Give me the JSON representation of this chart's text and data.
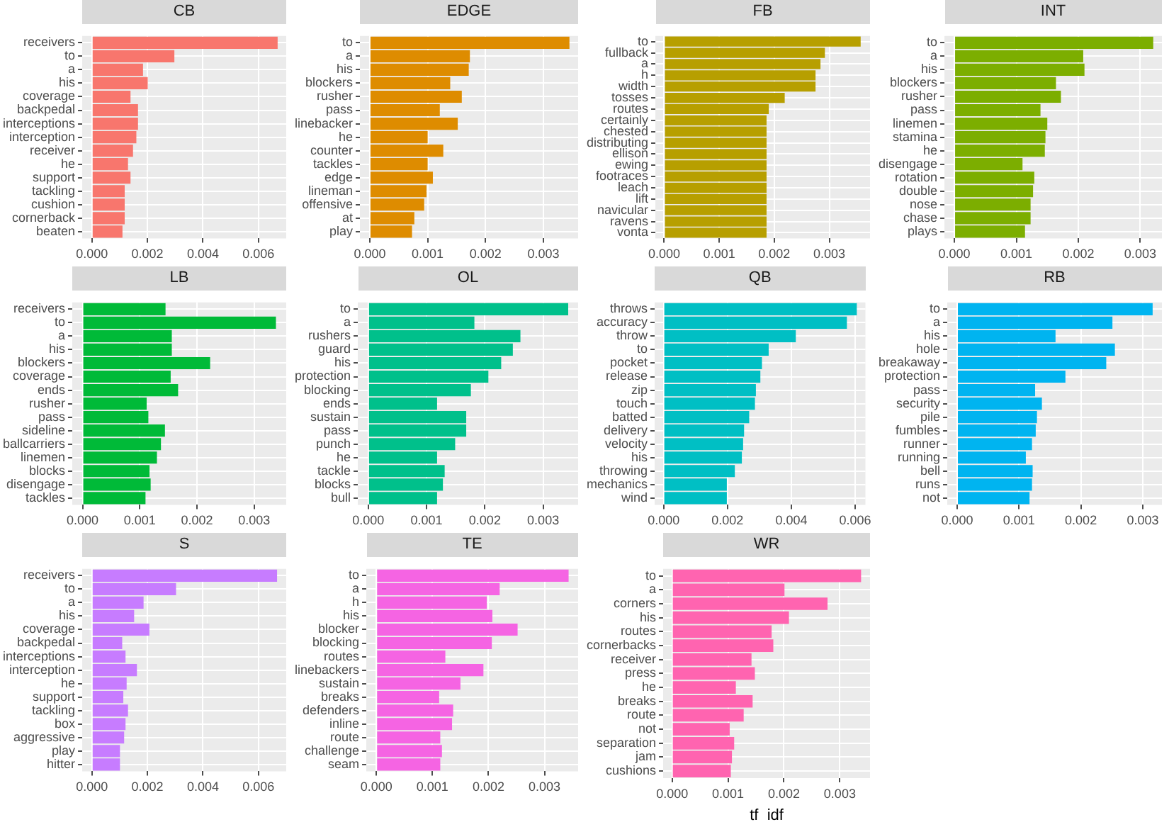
{
  "chart_data": [
    {
      "type": "bar",
      "orientation": "horizontal",
      "title": "CB",
      "grid": true,
      "categories": [
        "receivers",
        "to",
        "a",
        "his",
        "coverage",
        "backpedal",
        "interceptions",
        "interception",
        "receiver",
        "he",
        "support",
        "tackling",
        "cushion",
        "cornerback",
        "beaten"
      ],
      "series": [
        {
          "color": "#f8766d",
          "values": [
            0.00669,
            0.00297,
            0.00184,
            0.00201,
            0.00139,
            0.00166,
            0.00166,
            0.0016,
            0.00148,
            0.0013,
            0.00139,
            0.00118,
            0.00118,
            0.00118,
            0.0011
          ]
        }
      ],
      "xlim": [
        -0.00035,
        0.007
      ],
      "xticks": [
        {
          "value": 0,
          "label": "0.000"
        },
        {
          "value": 0.002,
          "label": "0.002"
        },
        {
          "value": 0.004,
          "label": "0.004"
        },
        {
          "value": 0.006,
          "label": "0.006"
        }
      ]
    },
    {
      "type": "bar",
      "orientation": "horizontal",
      "title": "EDGE",
      "grid": true,
      "categories": [
        "to",
        "a",
        "his",
        "blockers",
        "rusher",
        "pass",
        "linebacker",
        "he",
        "counter",
        "tackles",
        "edge",
        "lineman",
        "offensive",
        "at",
        "play"
      ],
      "series": [
        {
          "color": "#de8c00",
          "values": [
            0.00345,
            0.00173,
            0.00171,
            0.00139,
            0.00159,
            0.00121,
            0.00152,
            0.001,
            0.00127,
            0.001,
            0.00109,
            0.00098,
            0.00094,
            0.00077,
            0.00073
          ]
        }
      ],
      "xlim": [
        -0.00017,
        0.0036
      ],
      "xticks": [
        {
          "value": 0,
          "label": "0.000"
        },
        {
          "value": 0.001,
          "label": "0.001"
        },
        {
          "value": 0.002,
          "label": "0.002"
        },
        {
          "value": 0.003,
          "label": "0.003"
        }
      ]
    },
    {
      "type": "bar",
      "orientation": "horizontal",
      "title": "FB",
      "grid": true,
      "categories": [
        "to",
        "fullback",
        "a",
        "h",
        "width",
        "tosses",
        "routes",
        "certainly",
        "chested",
        "distributing",
        "ellison",
        "ewing",
        "footraces",
        "leach",
        "lift",
        "navicular",
        "ravens",
        "vonta"
      ],
      "series": [
        {
          "color": "#b79f00",
          "values": [
            0.00357,
            0.00292,
            0.00284,
            0.00275,
            0.00275,
            0.00219,
            0.0019,
            0.00186,
            0.00186,
            0.00186,
            0.00186,
            0.00186,
            0.00186,
            0.00186,
            0.00186,
            0.00186,
            0.00186,
            0.00186
          ]
        }
      ],
      "xlim": [
        -0.00016,
        0.00374
      ],
      "xticks": [
        {
          "value": 0,
          "label": "0.000"
        },
        {
          "value": 0.001,
          "label": "0.001"
        },
        {
          "value": 0.002,
          "label": "0.002"
        },
        {
          "value": 0.003,
          "label": "0.003"
        }
      ]
    },
    {
      "type": "bar",
      "orientation": "horizontal",
      "title": "INT",
      "grid": true,
      "categories": [
        "to",
        "a",
        "his",
        "blockers",
        "rusher",
        "pass",
        "linemen",
        "stamina",
        "he",
        "disengage",
        "rotation",
        "double",
        "nose",
        "chase",
        "plays"
      ],
      "series": [
        {
          "color": "#7cae00",
          "values": [
            0.00321,
            0.00208,
            0.0021,
            0.00164,
            0.00172,
            0.00139,
            0.0015,
            0.00147,
            0.00146,
            0.0011,
            0.00129,
            0.00127,
            0.00123,
            0.00123,
            0.00114
          ]
        }
      ],
      "xlim": [
        -0.00016,
        0.00335
      ],
      "xticks": [
        {
          "value": 0,
          "label": "0.000"
        },
        {
          "value": 0.001,
          "label": "0.001"
        },
        {
          "value": 0.002,
          "label": "0.002"
        },
        {
          "value": 0.003,
          "label": "0.003"
        }
      ]
    },
    {
      "type": "bar",
      "orientation": "horizontal",
      "title": "LB",
      "grid": true,
      "categories": [
        "receivers",
        "to",
        "a",
        "his",
        "blockers",
        "coverage",
        "ends",
        "rusher",
        "pass",
        "sideline",
        "ballcarriers",
        "linemen",
        "blocks",
        "disengage",
        "tackles"
      ],
      "series": [
        {
          "color": "#00ba38",
          "values": [
            0.00145,
            0.00338,
            0.00156,
            0.00156,
            0.00223,
            0.00154,
            0.00167,
            0.00112,
            0.00115,
            0.00144,
            0.00137,
            0.0013,
            0.00117,
            0.00119,
            0.0011
          ]
        }
      ],
      "xlim": [
        -0.00018,
        0.00356
      ],
      "xticks": [
        {
          "value": 0,
          "label": "0.000"
        },
        {
          "value": 0.001,
          "label": "0.001"
        },
        {
          "value": 0.002,
          "label": "0.002"
        },
        {
          "value": 0.003,
          "label": "0.003"
        }
      ]
    },
    {
      "type": "bar",
      "orientation": "horizontal",
      "title": "OL",
      "grid": true,
      "categories": [
        "to",
        "a",
        "rushers",
        "guard",
        "his",
        "protection",
        "blocking",
        "ends",
        "sustain",
        "pass",
        "punch",
        "he",
        "tackle",
        "blocks",
        "bull"
      ],
      "series": [
        {
          "color": "#00c08b",
          "values": [
            0.00343,
            0.00182,
            0.00261,
            0.00248,
            0.00228,
            0.00206,
            0.00176,
            0.00118,
            0.00168,
            0.00168,
            0.00149,
            0.00118,
            0.00131,
            0.00128,
            0.00118
          ]
        }
      ],
      "xlim": [
        -0.00018,
        0.0036
      ],
      "xticks": [
        {
          "value": 0,
          "label": "0.000"
        },
        {
          "value": 0.001,
          "label": "0.001"
        },
        {
          "value": 0.002,
          "label": "0.002"
        },
        {
          "value": 0.003,
          "label": "0.003"
        }
      ]
    },
    {
      "type": "bar",
      "orientation": "horizontal",
      "title": "QB",
      "grid": true,
      "categories": [
        "throws",
        "accuracy",
        "throw",
        "to",
        "pocket",
        "release",
        "zip",
        "touch",
        "batted",
        "delivery",
        "velocity",
        "his",
        "throwing",
        "mechanics",
        "wind"
      ],
      "series": [
        {
          "color": "#00bfc4",
          "values": [
            0.00605,
            0.00574,
            0.00414,
            0.00329,
            0.00308,
            0.00303,
            0.00289,
            0.00286,
            0.00268,
            0.00252,
            0.00249,
            0.00245,
            0.00223,
            0.00198,
            0.00198
          ]
        }
      ],
      "xlim": [
        -0.00028,
        0.00632
      ],
      "xticks": [
        {
          "value": 0,
          "label": "0.000"
        },
        {
          "value": 0.002,
          "label": "0.002"
        },
        {
          "value": 0.004,
          "label": "0.004"
        },
        {
          "value": 0.006,
          "label": "0.006"
        }
      ]
    },
    {
      "type": "bar",
      "orientation": "horizontal",
      "title": "RB",
      "grid": true,
      "categories": [
        "to",
        "a",
        "his",
        "hole",
        "breakaway",
        "protection",
        "pass",
        "security",
        "pile",
        "fumbles",
        "runner",
        "running",
        "bell",
        "runs",
        "not"
      ],
      "series": [
        {
          "color": "#00b4f0",
          "values": [
            0.00316,
            0.00251,
            0.00159,
            0.00255,
            0.00241,
            0.00175,
            0.00126,
            0.00137,
            0.00129,
            0.00127,
            0.00121,
            0.00111,
            0.00122,
            0.00121,
            0.00117
          ]
        }
      ],
      "xlim": [
        -0.00016,
        0.00331
      ],
      "xticks": [
        {
          "value": 0,
          "label": "0.000"
        },
        {
          "value": 0.001,
          "label": "0.001"
        },
        {
          "value": 0.002,
          "label": "0.002"
        },
        {
          "value": 0.003,
          "label": "0.003"
        }
      ]
    },
    {
      "type": "bar",
      "orientation": "horizontal",
      "title": "S",
      "grid": true,
      "categories": [
        "receivers",
        "to",
        "a",
        "his",
        "coverage",
        "backpedal",
        "interceptions",
        "interception",
        "he",
        "support",
        "tackling",
        "box",
        "aggressive",
        "play",
        "hitter"
      ],
      "series": [
        {
          "color": "#c77cff",
          "values": [
            0.00667,
            0.00303,
            0.00186,
            0.00152,
            0.00207,
            0.00109,
            0.00121,
            0.00162,
            0.00125,
            0.00113,
            0.0013,
            0.00121,
            0.00116,
            0.00101,
            0.00101
          ]
        }
      ],
      "xlim": [
        -0.00035,
        0.007
      ],
      "xticks": [
        {
          "value": 0,
          "label": "0.000"
        },
        {
          "value": 0.002,
          "label": "0.002"
        },
        {
          "value": 0.004,
          "label": "0.004"
        },
        {
          "value": 0.006,
          "label": "0.006"
        }
      ]
    },
    {
      "type": "bar",
      "orientation": "horizontal",
      "title": "TE",
      "grid": true,
      "categories": [
        "to",
        "a",
        "h",
        "his",
        "blocker",
        "blocking",
        "routes",
        "linebackers",
        "sustain",
        "breaks",
        "defenders",
        "inline",
        "route",
        "challenge",
        "seam"
      ],
      "series": [
        {
          "color": "#f564e3",
          "values": [
            0.00343,
            0.0022,
            0.00197,
            0.00207,
            0.00252,
            0.00206,
            0.00123,
            0.00191,
            0.0015,
            0.00112,
            0.00137,
            0.00135,
            0.00114,
            0.00117,
            0.00114
          ]
        }
      ],
      "xlim": [
        -0.00018,
        0.0036
      ],
      "xticks": [
        {
          "value": 0,
          "label": "0.000"
        },
        {
          "value": 0.001,
          "label": "0.001"
        },
        {
          "value": 0.002,
          "label": "0.002"
        },
        {
          "value": 0.003,
          "label": "0.003"
        }
      ]
    },
    {
      "type": "bar",
      "orientation": "horizontal",
      "title": "WR",
      "xlabel": "tf_idf",
      "grid": true,
      "categories": [
        "to",
        "a",
        "corners",
        "his",
        "routes",
        "cornerbacks",
        "receiver",
        "press",
        "he",
        "breaks",
        "route",
        "not",
        "separation",
        "jam",
        "cushions"
      ],
      "series": [
        {
          "color": "#ff64b0",
          "values": [
            0.00338,
            0.00201,
            0.00278,
            0.00209,
            0.00178,
            0.00181,
            0.00142,
            0.00148,
            0.00114,
            0.00144,
            0.00128,
            0.00103,
            0.00111,
            0.00107,
            0.00105
          ]
        }
      ],
      "xlim": [
        -0.00016,
        0.00354
      ],
      "xticks": [
        {
          "value": 0,
          "label": "0.000"
        },
        {
          "value": 0.001,
          "label": "0.001"
        },
        {
          "value": 0.002,
          "label": "0.002"
        },
        {
          "value": 0.003,
          "label": "0.003"
        }
      ]
    }
  ]
}
